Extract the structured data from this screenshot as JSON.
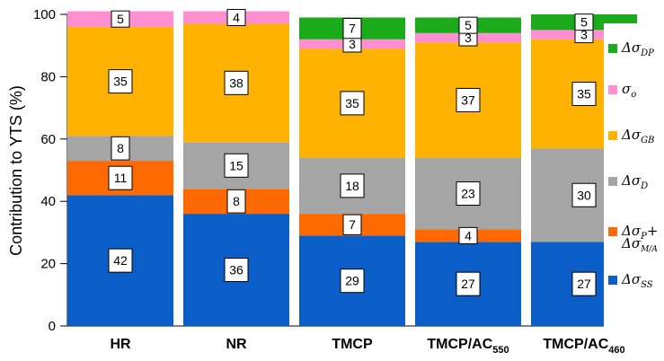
{
  "chart_data": {
    "type": "bar",
    "stacked": true,
    "ylabel": "Contribution to YTS (%)",
    "ylim": [
      0,
      100
    ],
    "yticks": [
      0,
      20,
      40,
      60,
      80,
      100
    ],
    "grid": false,
    "legend_position": "right",
    "categories": [
      {
        "main": "HR",
        "sub": ""
      },
      {
        "main": "NR",
        "sub": ""
      },
      {
        "main": "TMCP",
        "sub": ""
      },
      {
        "main": "TMCP/AC",
        "sub": "550"
      },
      {
        "main": "TMCP/AC",
        "sub": "460"
      }
    ],
    "series": [
      {
        "key": "ss",
        "name": "Δσ_SS",
        "label_main": "Δσ",
        "label_sub": "SS",
        "label_extra": "",
        "color": "#0b5ec8",
        "values": [
          42,
          36,
          29,
          27,
          27
        ]
      },
      {
        "key": "pma",
        "name": "Δσ_P+Δσ_M/A",
        "label_main": "Δσ",
        "label_sub": "P",
        "label_extra": "+",
        "label_line2_main": "Δσ",
        "label_line2_sub": "M/A",
        "color": "#ff6a00",
        "values": [
          11,
          8,
          7,
          4,
          0
        ]
      },
      {
        "key": "d",
        "name": "Δσ_D",
        "label_main": "Δσ",
        "label_sub": "D",
        "label_extra": "",
        "color": "#a5a5a5",
        "values": [
          8,
          15,
          18,
          23,
          30
        ]
      },
      {
        "key": "gb",
        "name": "Δσ_GB",
        "label_main": "Δσ",
        "label_sub": "GB",
        "label_extra": "",
        "color": "#ffb200",
        "values": [
          35,
          38,
          35,
          37,
          35
        ]
      },
      {
        "key": "o",
        "name": "σ_o",
        "label_main": "σ",
        "label_sub": "o",
        "label_extra": "",
        "color": "#ff8fd0",
        "values": [
          5,
          4,
          3,
          3,
          3
        ]
      },
      {
        "key": "dp",
        "name": "Δσ_DP",
        "label_main": "Δσ",
        "label_sub": "DP",
        "label_extra": "",
        "color": "#1aaa1a",
        "values": [
          0,
          0,
          7,
          5,
          5
        ]
      }
    ],
    "legend_order": [
      "dp",
      "o",
      "gb",
      "d",
      "pma",
      "ss"
    ]
  }
}
